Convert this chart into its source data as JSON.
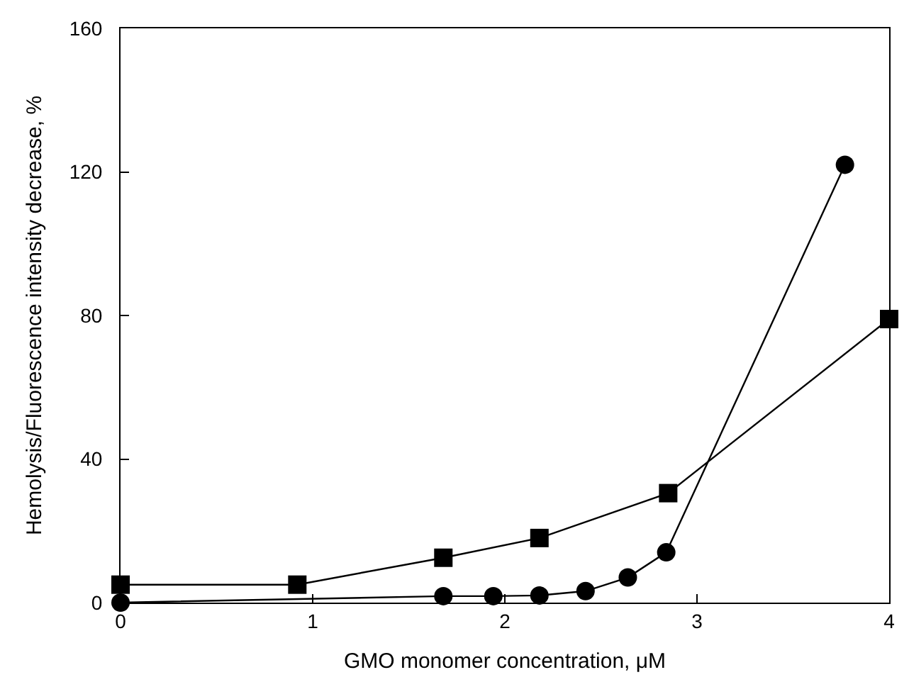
{
  "chart_data": {
    "type": "line",
    "xlabel": "GMO monomer concentration, μM",
    "ylabel": "Hemolysis/Fluorescence intensity decrease, %",
    "xlim": [
      0,
      4
    ],
    "ylim": [
      0,
      160
    ],
    "xticks": [
      0,
      1,
      2,
      3,
      4
    ],
    "yticks": [
      0,
      40,
      80,
      120,
      160
    ],
    "grid": false,
    "legend": false,
    "series": [
      {
        "color": "#000000",
        "marker": "square",
        "x": [
          0,
          0.92,
          1.68,
          2.18,
          2.85,
          4.0
        ],
        "values": [
          5,
          5,
          12.5,
          18,
          30.5,
          79
        ]
      },
      {
        "color": "#000000",
        "marker": "circle",
        "x": [
          0,
          1.68,
          1.94,
          2.18,
          2.42,
          2.64,
          2.84,
          3.77
        ],
        "values": [
          0,
          1.8,
          1.8,
          2,
          3.2,
          7,
          14,
          122
        ]
      }
    ]
  }
}
